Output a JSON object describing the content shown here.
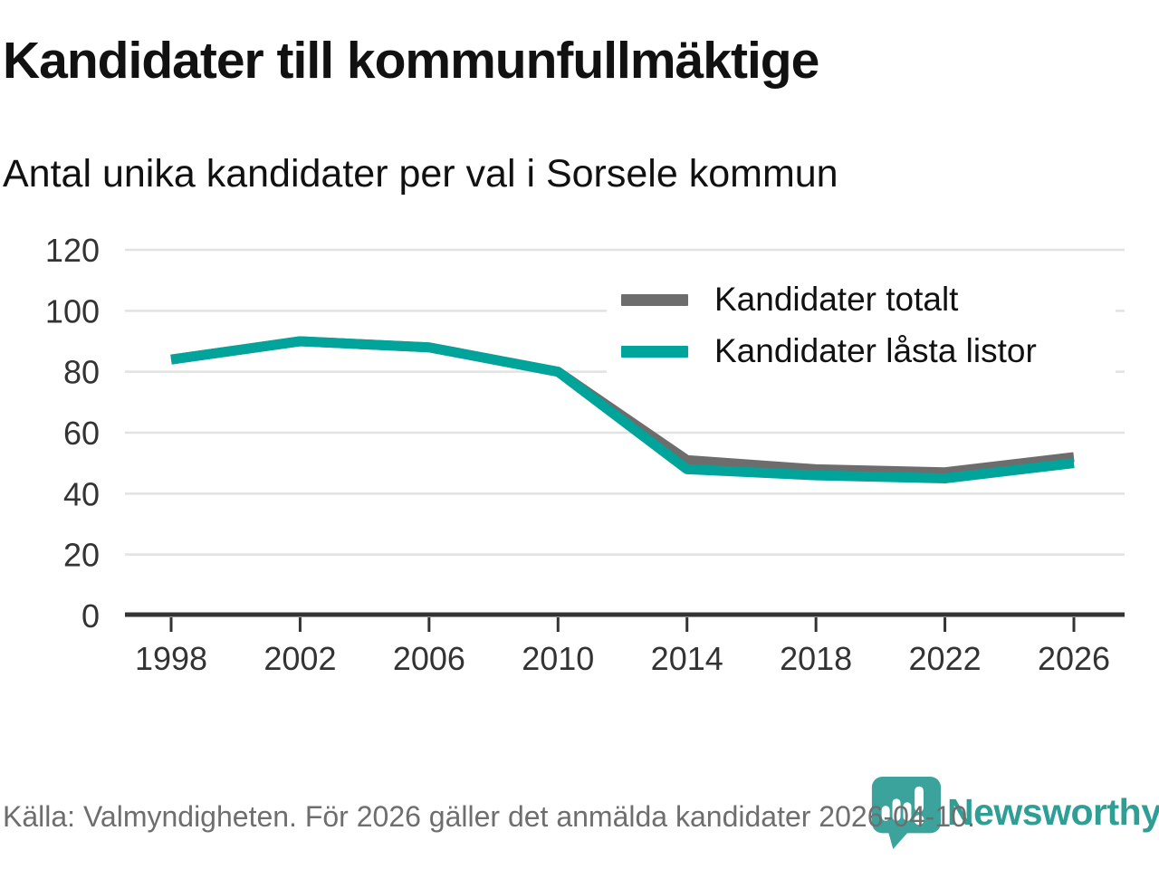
{
  "chart_data": {
    "type": "line",
    "title": "Kandidater till kommunfullmäktige",
    "subtitle": "Antal unika kandidater per val i Sorsele kommun",
    "x": [
      1998,
      2002,
      2006,
      2010,
      2014,
      2018,
      2022,
      2026
    ],
    "series": [
      {
        "name": "Kandidater totalt",
        "color": "#6d6d6d",
        "values": [
          84,
          90,
          88,
          80,
          51,
          48,
          47,
          52
        ]
      },
      {
        "name": "Kandidater låsta listor",
        "color": "#00a49a",
        "values": [
          84,
          90,
          88,
          80,
          48,
          46,
          45,
          50
        ]
      }
    ],
    "ylim": [
      0,
      120
    ],
    "yticks": [
      0,
      20,
      40,
      60,
      80,
      100,
      120
    ],
    "grid": true,
    "legend_position": "top-right",
    "axis_color": "#333333",
    "gridline_color": "#e2e2e2"
  },
  "footer": {
    "source": "Källa: Valmyndigheten. För 2026 gäller det anmälda kandidater 2026-04-10.",
    "brand": "Newsworthy",
    "brand_color": "#2f9e95",
    "brand_icon": "newsworthy-bubble-icon",
    "brand_icon_color": "#3ba39b"
  }
}
